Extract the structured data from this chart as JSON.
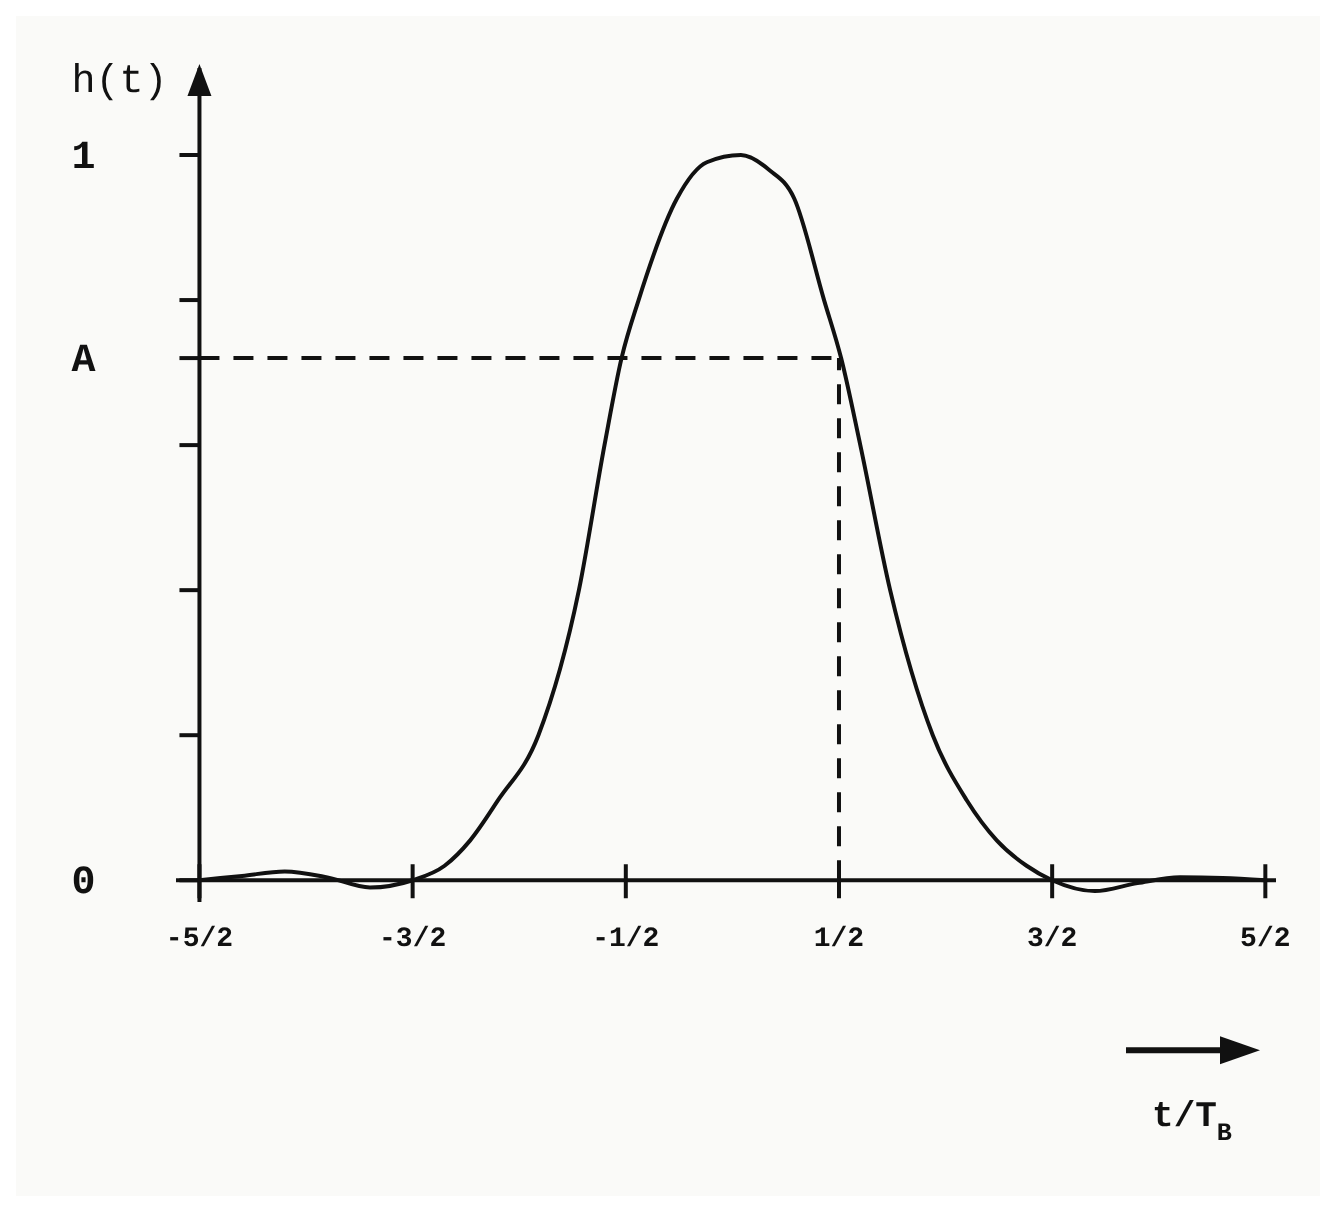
{
  "chart_data": {
    "type": "line",
    "ylabel": "h(t)",
    "xlabel": "t/T$_{B}$",
    "xlim": [
      -2.61,
      2.55
    ],
    "ylim": [
      -0.03,
      1.12
    ],
    "xticks": [
      {
        "value": -2.5,
        "label": "-5/2"
      },
      {
        "value": -1.5,
        "label": "-3/2"
      },
      {
        "value": -0.5,
        "label": "-1/2"
      },
      {
        "value": 0.5,
        "label": "1/2"
      },
      {
        "value": 1.5,
        "label": "3/2"
      },
      {
        "value": 2.5,
        "label": "5/2"
      }
    ],
    "yticks": [
      {
        "value": 0,
        "label": "0"
      },
      {
        "value": 0.2,
        "label": null
      },
      {
        "value": 0.4,
        "label": null
      },
      {
        "value": 0.6,
        "label": null
      },
      {
        "value": 0.72,
        "label": "A"
      },
      {
        "value": 0.8,
        "label": null
      },
      {
        "value": 1,
        "label": "1"
      }
    ],
    "series": [
      {
        "color": "#111111",
        "x": [
          -2.5,
          -2.3,
          -2.1,
          -1.9,
          -1.7,
          -1.5,
          -1.35,
          -1.23,
          -1.1,
          -0.91,
          -0.72,
          -0.6,
          -0.52,
          -0.44,
          -0.26,
          -0.12,
          0.04,
          0.17,
          0.29,
          0.43,
          0.51,
          0.6,
          0.74,
          0.94,
          1.1,
          1.24,
          1.38,
          1.5,
          1.7,
          1.9,
          2.1,
          2.3,
          2.5
        ],
        "values": [
          0,
          0.006,
          0.012,
          0.004,
          -0.01,
          0,
          0.02,
          0.055,
          0.11,
          0.2,
          0.4,
          0.6,
          0.72,
          0.8,
          0.94,
          0.99,
          1.0,
          0.98,
          0.94,
          0.8,
          0.72,
          0.6,
          0.4,
          0.2,
          0.11,
          0.055,
          0.02,
          0,
          -0.015,
          -0.004,
          0.004,
          0.003,
          0
        ]
      }
    ],
    "ref_lines": [
      {
        "axis": "y",
        "value": 0.72,
        "line_style": "dashed"
      },
      {
        "axis": "x",
        "value": 0.5,
        "line_style": "dashed"
      }
    ],
    "line_style": "solid",
    "grid": false
  }
}
